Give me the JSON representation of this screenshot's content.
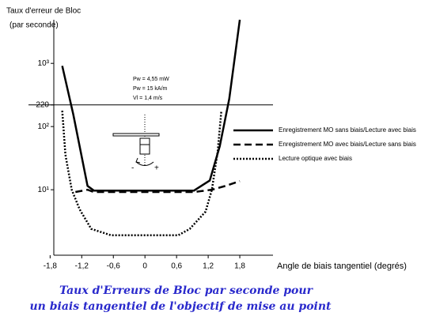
{
  "chart_data": {
    "type": "line",
    "ylabel": [
      "Taux d'erreur de Bloc",
      "(par seconde)"
    ],
    "xlabel": "Angle de biais tangentiel (degrés)",
    "parameters": [
      "Pw = 4,55 mW",
      "Pw = 15 kA/m",
      "Vl = 1,4 m/s"
    ],
    "diagram_labels": [
      "-",
      "+"
    ],
    "caption": [
      "Taux d'Erreurs de Bloc par seconde pour",
      "un biais tangentiel de l'objectif de mise au point"
    ],
    "log_y": true,
    "xlim": [
      -1.73,
      2.43
    ],
    "ylim": [
      0.92,
      4900
    ],
    "xticks": [
      {
        "value": -1.8,
        "label": "-1,8"
      },
      {
        "value": -1.2,
        "label": "-1,2"
      },
      {
        "value": -0.6,
        "label": "-0,6"
      },
      0,
      {
        "value": 0.6,
        "label": "0,6"
      },
      {
        "value": 1.2,
        "label": "1,2"
      },
      {
        "value": 1.8,
        "label": "1,8"
      }
    ],
    "yticks": [
      {
        "value": 10,
        "label": "10¹"
      },
      {
        "value": 100,
        "label": "10²"
      },
      220,
      {
        "value": 1000,
        "label": "10³"
      }
    ],
    "hline": 220,
    "series": [
      {
        "name": "Enregistrement MO sans biais/Lecture avec biais",
        "color": "#000000",
        "style": "solid",
        "x": [
          -1.57,
          -1.36,
          -1.09,
          -0.97,
          0.93,
          1.23,
          1.42,
          1.6,
          1.8
        ],
        "values": [
          912,
          155,
          11.5,
          9.7,
          9.7,
          14,
          49,
          275,
          4900
        ]
      },
      {
        "name": "Enregistrement MO avec biais/Lecture sans biais",
        "color": "#000000",
        "style": "dashed",
        "x": [
          -1.32,
          -1.09,
          -0.97,
          0.93,
          1.27,
          1.53,
          1.8
        ],
        "values": [
          9.2,
          10,
          9.2,
          9.2,
          10,
          11.5,
          13.7
        ]
      },
      {
        "name": "Lecture optique avec biais",
        "color": "#000000",
        "style": "dotted",
        "x": [
          -1.57,
          -1.51,
          -1.39,
          -1.24,
          -1.02,
          -0.64,
          0.63,
          0.85,
          1.15,
          1.27,
          1.38,
          1.45
        ],
        "values": [
          178,
          36,
          10,
          4.9,
          2.4,
          1.9,
          1.9,
          2.4,
          4.5,
          10,
          40,
          178
        ]
      }
    ]
  }
}
